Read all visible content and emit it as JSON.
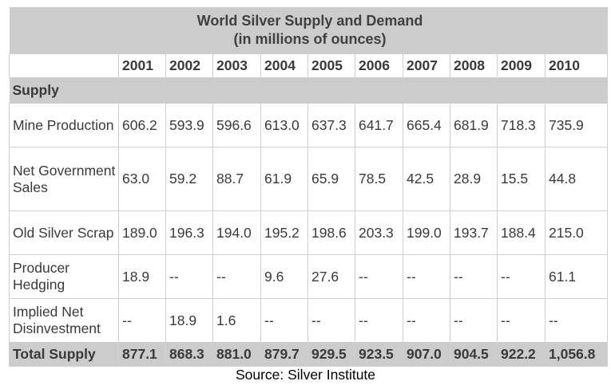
{
  "chart_data": {
    "type": "table",
    "title": "World Silver Supply and Demand",
    "subtitle": "(in millions of ounces)",
    "columns": [
      "2001",
      "2002",
      "2003",
      "2004",
      "2005",
      "2006",
      "2007",
      "2008",
      "2009",
      "2010"
    ],
    "section": "Supply",
    "rows": [
      {
        "label": "Mine Production",
        "values": [
          "606.2",
          "593.9",
          "596.6",
          "613.0",
          "637.3",
          "641.7",
          "665.4",
          "681.9",
          "718.3",
          "735.9"
        ]
      },
      {
        "label": "Net Government Sales",
        "values": [
          "63.0",
          "59.2",
          "88.7",
          "61.9",
          "65.9",
          "78.5",
          "42.5",
          "28.9",
          "15.5",
          "44.8"
        ]
      },
      {
        "label": "Old Silver Scrap",
        "values": [
          "189.0",
          "196.3",
          "194.0",
          "195.2",
          "198.6",
          "203.3",
          "199.0",
          "193.7",
          "188.4",
          "215.0"
        ]
      },
      {
        "label": "Producer Hedging",
        "values": [
          "18.9",
          "--",
          "--",
          "9.6",
          "27.6",
          "--",
          "--",
          "--",
          "--",
          "61.1"
        ]
      },
      {
        "label": "Implied Net Disinvestment",
        "values": [
          "--",
          "18.9",
          "1.6",
          "--",
          "--",
          "--",
          "--",
          "--",
          "--",
          "--"
        ]
      }
    ],
    "total": {
      "label": "Total Supply",
      "values": [
        "877.1",
        "868.3",
        "881.0",
        "879.7",
        "929.5",
        "923.5",
        "907.0",
        "904.5",
        "922.2",
        "1,056.8"
      ]
    }
  },
  "source": "Source:  Silver Institute",
  "colors": {
    "header_bg": "#cccccc",
    "text": "#3a3a3a",
    "grid": "#cfcfcf"
  }
}
